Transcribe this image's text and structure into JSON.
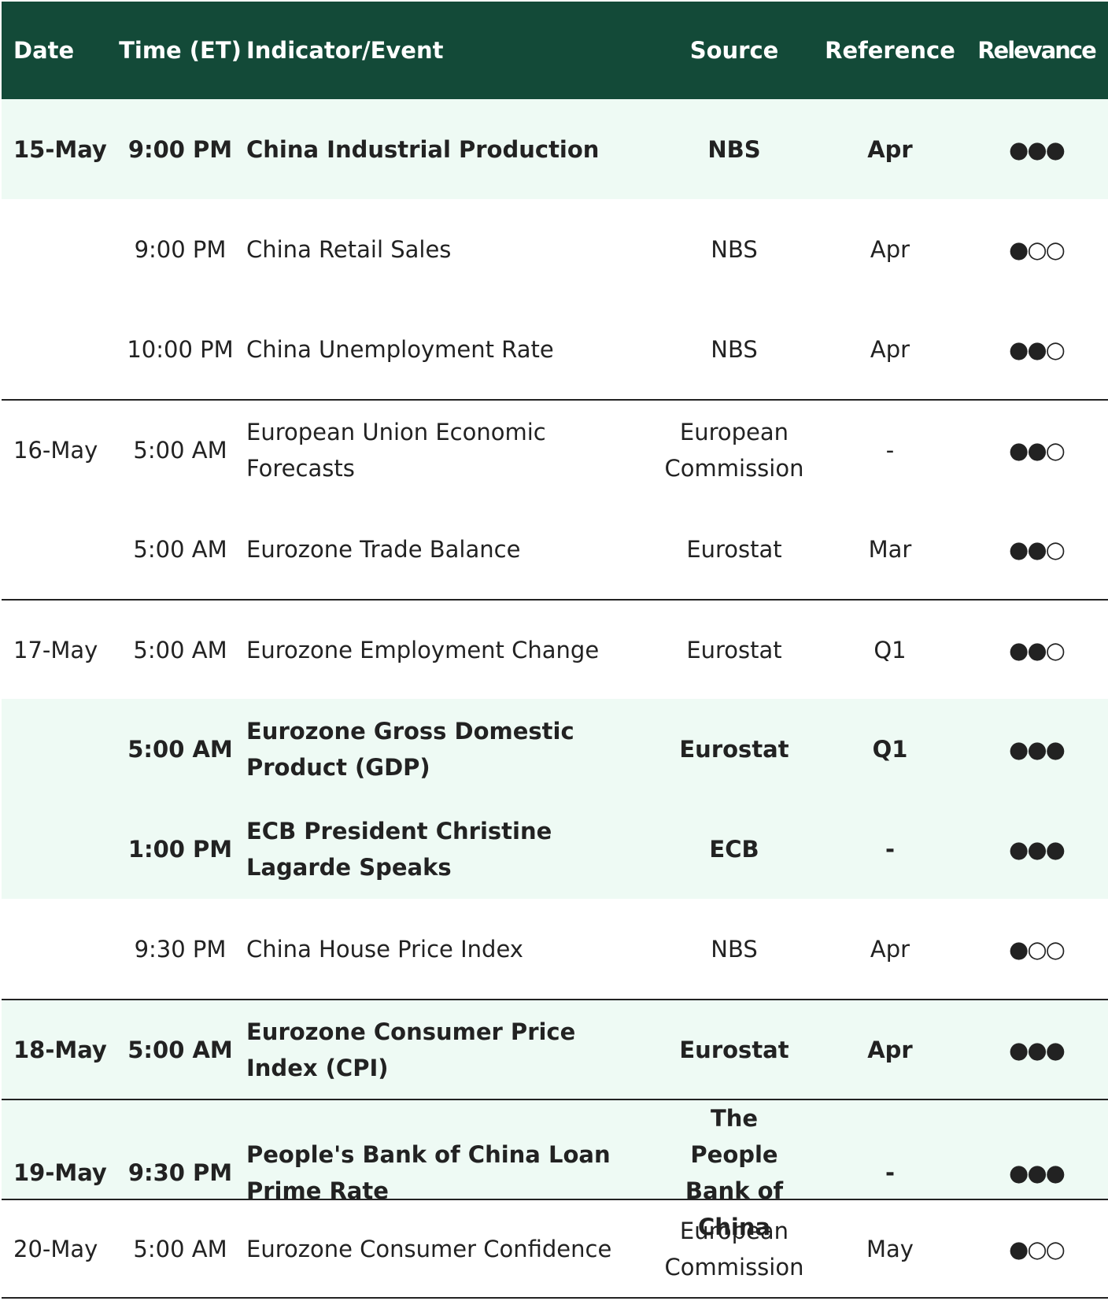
{
  "header": [
    "Date",
    "Time (ET)",
    "Indicator/Event",
    "Source",
    "Reference",
    "Relevance"
  ],
  "rows": [
    {
      "date": "15-May",
      "time": "9:00 PM",
      "event": "China Industrial Production",
      "source": "NBS",
      "reference": "Apr",
      "relevance": "●●●",
      "bold": true
    },
    {
      "date": null,
      "time": "9:00 PM",
      "event": "China Retail Sales",
      "source": "NBS",
      "reference": "Apr",
      "relevance": "●○○",
      "bold": false
    },
    {
      "date": null,
      "time": "10:00 PM",
      "event": "China Unemployment Rate",
      "source": "NBS",
      "reference": "Apr",
      "relevance": "●●○",
      "bold": false
    },
    {
      "date": "16-May",
      "time": "5:00 AM",
      "event": "European Union Economic Forecasts",
      "source": "European Commission",
      "reference": "-",
      "relevance": "●●○",
      "bold": false
    },
    {
      "date": null,
      "time": "5:00 AM",
      "event": "Eurozone Trade Balance",
      "source": "Eurostat",
      "reference": "Mar",
      "relevance": "●●○",
      "bold": false
    },
    {
      "date": "17-May",
      "time": "5:00 AM",
      "event": "Eurozone Employment Change",
      "source": "Eurostat",
      "reference": "Q1",
      "relevance": "●●○",
      "bold": false
    },
    {
      "date": null,
      "time": "5:00 AM",
      "event": "Eurozone Gross Domestic Product (GDP)",
      "source": "Eurostat",
      "reference": "Q1",
      "relevance": "●●●",
      "bold": true
    },
    {
      "date": null,
      "time": "1:00 PM",
      "event": "ECB President Christine Lagarde Speaks",
      "source": "ECB",
      "reference": "-",
      "relevance": "●●●",
      "bold": true
    },
    {
      "date": null,
      "time": "9:30 PM",
      "event": "China House Price Index",
      "source": "NBS",
      "reference": "Apr",
      "relevance": "●○○",
      "bold": false
    },
    {
      "date": "18-May",
      "time": "5:00 AM",
      "event": "Eurozone Consumer Price Index (CPI)",
      "source": "Eurostat",
      "reference": "Apr",
      "relevance": "●●●",
      "bold": true
    },
    {
      "date": "19-May",
      "time": "9:30 PM",
      "event": "People's Bank of China Loan Prime Rate",
      "source": "The People Bank of China",
      "reference": "-",
      "relevance": "●●●",
      "bold": true
    },
    {
      "date": "20-May",
      "time": "5:00 AM",
      "event": "Eurozone Consumer Confidence",
      "source": "European Commission",
      "reference": "May",
      "relevance": "●○○",
      "bold": false
    }
  ]
}
